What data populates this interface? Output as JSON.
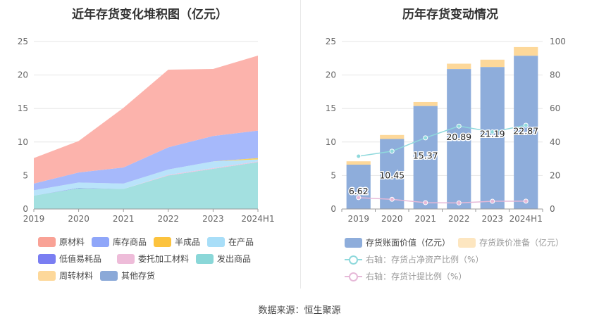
{
  "source": "数据来源：恒生聚源",
  "chart_data": [
    {
      "type": "area",
      "title": "近年存货变化堆积图（亿元）",
      "categories": [
        "2019",
        "2020",
        "2021",
        "2022",
        "2023",
        "2024H1"
      ],
      "yticks": [
        "0",
        "5",
        "10",
        "15",
        "20",
        "25"
      ],
      "ylim": [
        0,
        25
      ],
      "stack_order": [
        "发出商品",
        "其他存货",
        "周转材料",
        "委托加工材料",
        "低值易耗品",
        "在产品",
        "半成品",
        "库存商品",
        "原材料"
      ],
      "series": [
        {
          "name": "原材料",
          "color": "#fcb3ac",
          "values": [
            3.8,
            4.7,
            8.9,
            11.6,
            10.0,
            11.2
          ]
        },
        {
          "name": "库存商品",
          "color": "#a6b9fb",
          "values": [
            1.0,
            1.5,
            2.4,
            3.3,
            3.8,
            4.1
          ]
        },
        {
          "name": "半成品",
          "color": "#fdd14e",
          "values": [
            0,
            0,
            0,
            0,
            0,
            0.2
          ]
        },
        {
          "name": "在产品",
          "color": "#b9e3fa",
          "values": [
            0.8,
            0.8,
            0.8,
            0.8,
            1.0,
            0.3
          ]
        },
        {
          "name": "低值易耗品",
          "color": "#7b7ff2",
          "values": [
            0,
            0.05,
            0,
            0,
            0,
            0
          ]
        },
        {
          "name": "委托加工材料",
          "color": "#ecc4e0",
          "values": [
            0,
            0,
            0,
            0.1,
            0.1,
            0.1
          ]
        },
        {
          "name": "发出商品",
          "color": "#a3e0e0",
          "values": [
            2.0,
            3.1,
            3.0,
            5.0,
            6.0,
            7.0
          ]
        },
        {
          "name": "周转材料",
          "color": "#fcd89a",
          "values": [
            0,
            0,
            0,
            0,
            0,
            0
          ]
        },
        {
          "name": "其他存货",
          "color": "#8aaad7",
          "values": [
            0,
            0,
            0,
            0,
            0,
            0
          ]
        }
      ],
      "legend": [
        "原材料",
        "库存商品",
        "半成品",
        "在产品",
        "低值易耗品",
        "委托加工材料",
        "发出商品",
        "周转材料",
        "其他存货"
      ],
      "legend_colors": [
        "#f9a296",
        "#8fa6f9",
        "#fcc33e",
        "#a8def8",
        "#7a7ef2",
        "#eebcd9",
        "#8ad7d8",
        "#fdd89a",
        "#8ba9d8"
      ]
    },
    {
      "type": "bar",
      "title": "历年存货变动情况",
      "categories": [
        "2019",
        "2020",
        "2021",
        "2022",
        "2023",
        "2024H1"
      ],
      "yticks_left": [
        "0",
        "5",
        "10",
        "15",
        "20",
        "25"
      ],
      "ylim_left": [
        0,
        25
      ],
      "yticks_right": [
        "0",
        "20",
        "40",
        "60",
        "80",
        "100"
      ],
      "ylim_right": [
        0,
        100
      ],
      "bars": {
        "name": "存货账面价值（亿元）",
        "color": "#8eaddb",
        "values": [
          6.62,
          10.45,
          15.37,
          20.89,
          21.19,
          22.87
        ],
        "labels": [
          "6.62",
          "10.45",
          "15.37",
          "20.89",
          "21.19",
          "22.87"
        ]
      },
      "reserve": {
        "name": "存货跌价准备（亿元）",
        "color": "#fdd89a",
        "values": [
          0.5,
          0.6,
          0.6,
          0.8,
          1.1,
          1.3
        ]
      },
      "lines": [
        {
          "name": "右轴：存货占净资产比例（%）",
          "color": "#8fd9dc",
          "values": [
            31.5,
            34.5,
            42.5,
            49.5,
            46.0,
            50.0
          ]
        },
        {
          "name": "右轴：存货计提比例（%）",
          "color": "#e6b9d8",
          "values": [
            6.8,
            5.8,
            3.8,
            3.6,
            4.6,
            4.7
          ]
        }
      ],
      "legend": [
        "存货账面价值（亿元）",
        "存货跌价准备（亿元）",
        "右轴：存货占净资产比例（%）",
        "右轴：存货计提比例（%）"
      ],
      "legend_colors": [
        "#8eaddb",
        "#fde6c0",
        "#8fd9dc",
        "#e6b9d8"
      ]
    }
  ]
}
